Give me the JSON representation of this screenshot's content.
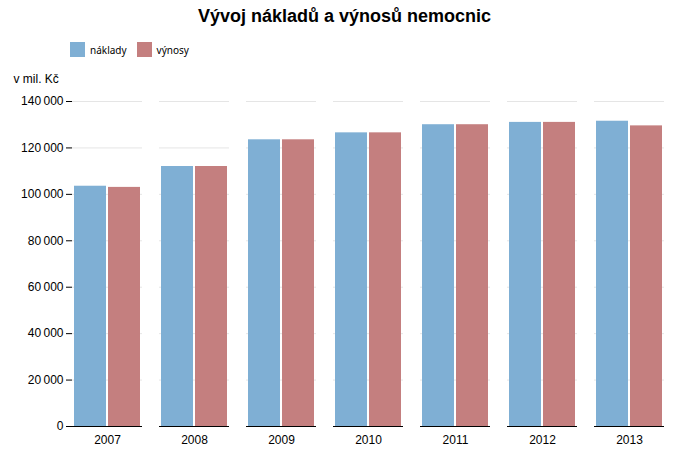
{
  "chart_data": {
    "type": "bar",
    "title": "Vývoj nákladů a výnosů nemocnic",
    "ylabel": "v mil. Kč",
    "categories": [
      "2007",
      "2008",
      "2009",
      "2010",
      "2011",
      "2012",
      "2013"
    ],
    "series": [
      {
        "name": "náklady",
        "color": "#7fafd4",
        "values": [
          103500,
          112000,
          123500,
          126500,
          130000,
          131000,
          131500
        ]
      },
      {
        "name": "výnosy",
        "color": "#c47f7f",
        "values": [
          103000,
          112000,
          123500,
          126500,
          130000,
          131000,
          129500
        ]
      }
    ],
    "ylim": [
      0,
      140000
    ],
    "yticks": [
      0,
      {
        "value": 20000,
        "label": "20 000"
      },
      {
        "value": 40000,
        "label": "40 000"
      },
      {
        "value": 60000,
        "label": "60 000"
      },
      {
        "value": 80000,
        "label": "80 000"
      },
      {
        "value": 100000,
        "label": "100 000"
      },
      {
        "value": 120000,
        "label": "120 000"
      },
      {
        "value": 140000,
        "label": "140 000"
      }
    ],
    "grid": true,
    "legend": "upper left"
  }
}
